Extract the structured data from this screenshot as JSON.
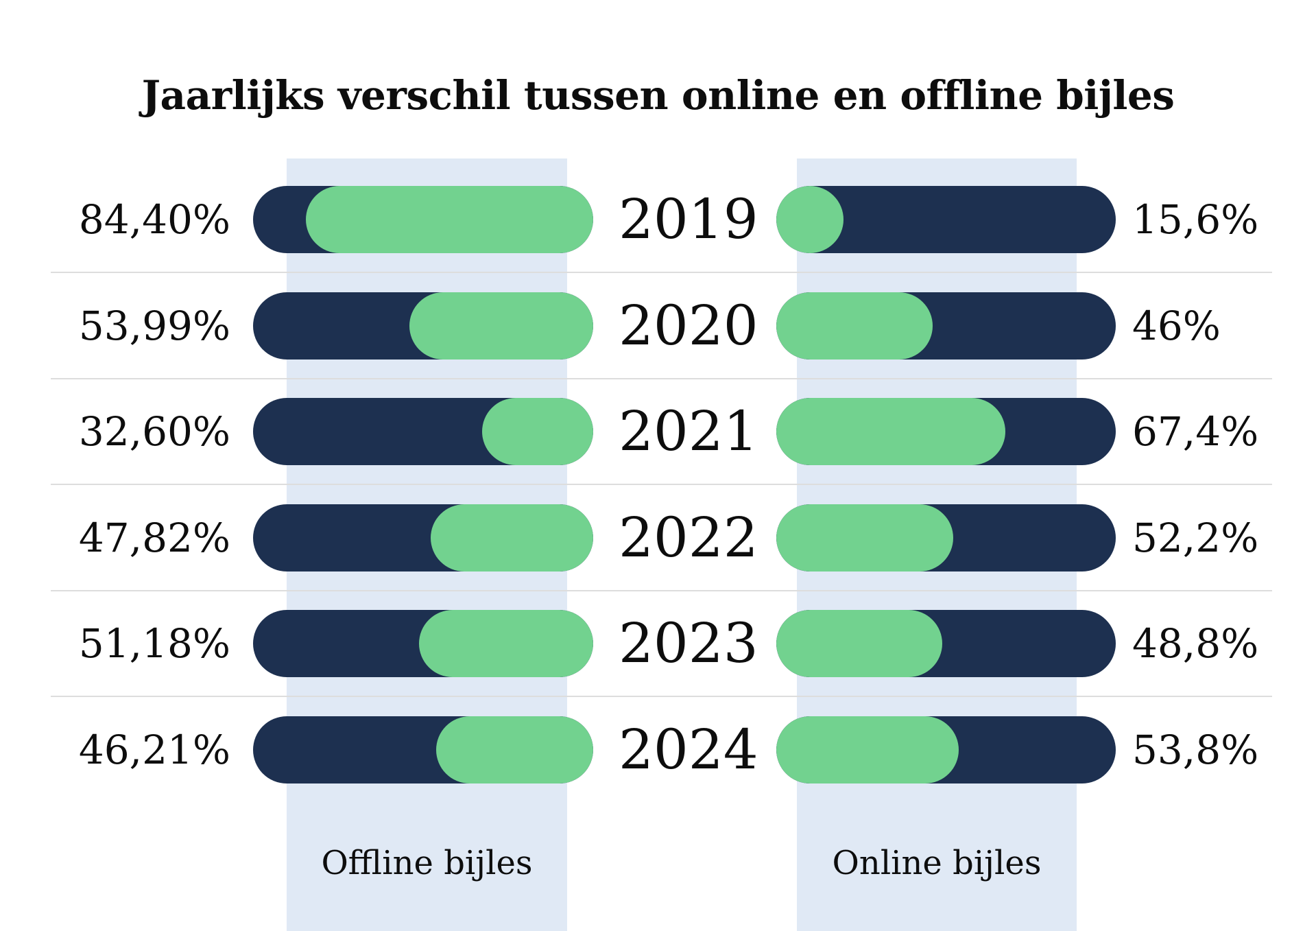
{
  "chart_data": {
    "type": "bar",
    "title": "Jaarlijks verschil tussen online en offline bijles",
    "categories": [
      "2019",
      "2020",
      "2021",
      "2022",
      "2023",
      "2024"
    ],
    "series": [
      {
        "name": "Offline bijles",
        "values": [
          84.4,
          53.99,
          32.6,
          47.82,
          51.18,
          46.21
        ],
        "labels": [
          "84,40%",
          "53,99%",
          "32,60%",
          "47,82%",
          "51,18%",
          "46,21%"
        ]
      },
      {
        "name": "Online bijles",
        "values": [
          15.6,
          46,
          67.4,
          52.2,
          48.8,
          53.8
        ],
        "labels": [
          "15,6%",
          "46%",
          "67,4%",
          "52,2%",
          "48,8%",
          "53,8%"
        ]
      }
    ],
    "ylim": [
      0,
      100
    ],
    "colors": {
      "bar_track": "#1d3050",
      "bar_fill": "#72d28f",
      "band": "#e0e9f5"
    }
  }
}
